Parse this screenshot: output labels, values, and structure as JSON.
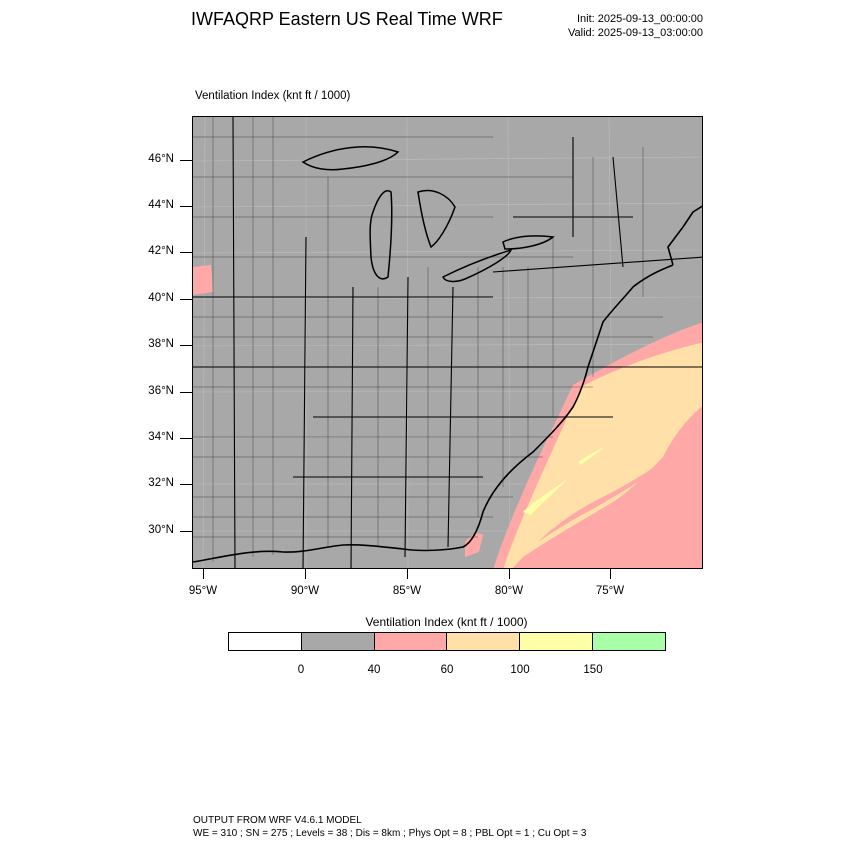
{
  "header": {
    "title": "IWFAQRP Eastern US Real Time WRF",
    "init": "Init: 2025-09-13_00:00:00",
    "valid": "Valid: 2025-09-13_03:00:00"
  },
  "map": {
    "field_label": "Ventilation Index   (knt ft / 1000)",
    "lat_labels": [
      "46°N",
      "44°N",
      "42°N",
      "40°N",
      "38°N",
      "36°N",
      "34°N",
      "32°N",
      "30°N"
    ],
    "lon_labels": [
      "95°W",
      "90°W",
      "85°W",
      "80°W",
      "75°W"
    ],
    "colors": {
      "land_sea_base": "#a8a8a8",
      "level_40_60": "#ffa8a8",
      "level_60_100": "#ffe0a8",
      "level_100_150": "#ffffa8"
    }
  },
  "colorbar": {
    "title": "Ventilation Index  (knt ft / 1000)",
    "colors": [
      "#ffffff",
      "#a8a8a8",
      "#ffa8a8",
      "#ffe0a8",
      "#ffffa8",
      "#a8ffa8"
    ],
    "labels": [
      "0",
      "40",
      "60",
      "100",
      "150"
    ]
  },
  "footer": {
    "line1": "OUTPUT FROM WRF V4.6.1 MODEL",
    "line2": "WE = 310 ; SN = 275 ; Levels = 38 ; Dis = 8km ; Phys Opt = 8 ; PBL Opt = 1 ; Cu Opt = 3"
  }
}
